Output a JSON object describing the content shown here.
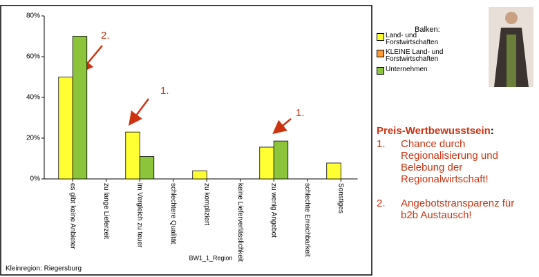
{
  "chart_data": {
    "type": "bar",
    "categories": [
      "es gibt keine Anbieter",
      "zu lange Lieferzeit",
      "im Vergleich zu teuer",
      "schlechtere Qualität",
      "zu kompliziert",
      "keine Lieferverlässlichkeit",
      "zu wenig Angebot",
      "schlechte Erreichbarkeit",
      "Sonstiges"
    ],
    "series": [
      {
        "name": "Land- und Forstwirtschaften",
        "color": "#ffff33",
        "values": [
          50,
          null,
          23,
          null,
          4,
          null,
          15.6,
          null,
          7.8
        ]
      },
      {
        "name": "KLEINE Land- und Forstwirtschaften",
        "color": "#ff9933",
        "values": [
          null,
          null,
          null,
          null,
          null,
          null,
          null,
          null,
          null
        ]
      },
      {
        "name": "Unternehmen",
        "color": "#8cc43c",
        "values": [
          70,
          null,
          11,
          null,
          null,
          null,
          18.6,
          null,
          null
        ]
      }
    ],
    "ylim": [
      0,
      80
    ],
    "yticks": [
      {
        "value": 0,
        "label": "0%"
      },
      {
        "value": 20,
        "label": "20%"
      },
      {
        "value": 40,
        "label": "40%"
      },
      {
        "value": 60,
        "label": "60%"
      },
      {
        "value": 80,
        "label": "80%"
      }
    ],
    "xlabel": "BW1_1_Region",
    "legend_title": "Balken:",
    "footer": "Kleinregion: Riegersburg",
    "annotations": [
      "2.",
      "1.",
      "1."
    ]
  },
  "panel": {
    "heading": "Preis-Wertbewusstsein",
    "heading_suffix": ":",
    "items": [
      {
        "number": "1.",
        "text": "Chance durch Regionalisierung und Belebung der Regionalwirtschaft!"
      },
      {
        "number": "2.",
        "text": "Angebotstransparenz für b2b Austausch!"
      }
    ]
  }
}
